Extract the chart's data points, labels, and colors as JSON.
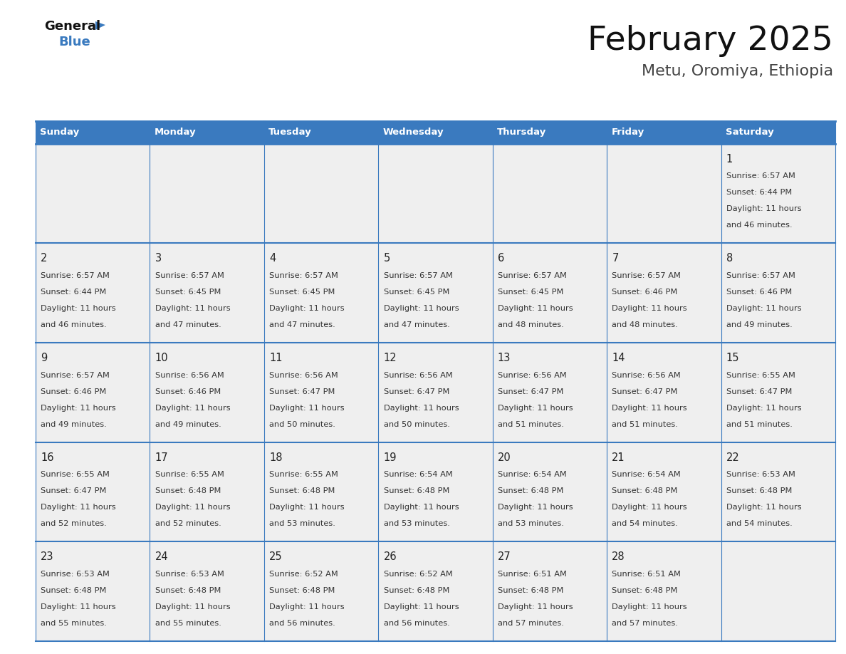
{
  "title": "February 2025",
  "subtitle": "Metu, Oromiya, Ethiopia",
  "header_bg": "#3a7abf",
  "header_text": "#ffffff",
  "cell_bg": "#efefef",
  "border_color": "#3a7abf",
  "day_names": [
    "Sunday",
    "Monday",
    "Tuesday",
    "Wednesday",
    "Thursday",
    "Friday",
    "Saturday"
  ],
  "days": [
    {
      "day": 1,
      "col": 6,
      "row": 0,
      "sunrise": "6:57 AM",
      "sunset": "6:44 PM",
      "daylight": "11 hours and 46 minutes"
    },
    {
      "day": 2,
      "col": 0,
      "row": 1,
      "sunrise": "6:57 AM",
      "sunset": "6:44 PM",
      "daylight": "11 hours and 46 minutes"
    },
    {
      "day": 3,
      "col": 1,
      "row": 1,
      "sunrise": "6:57 AM",
      "sunset": "6:45 PM",
      "daylight": "11 hours and 47 minutes"
    },
    {
      "day": 4,
      "col": 2,
      "row": 1,
      "sunrise": "6:57 AM",
      "sunset": "6:45 PM",
      "daylight": "11 hours and 47 minutes"
    },
    {
      "day": 5,
      "col": 3,
      "row": 1,
      "sunrise": "6:57 AM",
      "sunset": "6:45 PM",
      "daylight": "11 hours and 47 minutes"
    },
    {
      "day": 6,
      "col": 4,
      "row": 1,
      "sunrise": "6:57 AM",
      "sunset": "6:45 PM",
      "daylight": "11 hours and 48 minutes"
    },
    {
      "day": 7,
      "col": 5,
      "row": 1,
      "sunrise": "6:57 AM",
      "sunset": "6:46 PM",
      "daylight": "11 hours and 48 minutes"
    },
    {
      "day": 8,
      "col": 6,
      "row": 1,
      "sunrise": "6:57 AM",
      "sunset": "6:46 PM",
      "daylight": "11 hours and 49 minutes"
    },
    {
      "day": 9,
      "col": 0,
      "row": 2,
      "sunrise": "6:57 AM",
      "sunset": "6:46 PM",
      "daylight": "11 hours and 49 minutes"
    },
    {
      "day": 10,
      "col": 1,
      "row": 2,
      "sunrise": "6:56 AM",
      "sunset": "6:46 PM",
      "daylight": "11 hours and 49 minutes"
    },
    {
      "day": 11,
      "col": 2,
      "row": 2,
      "sunrise": "6:56 AM",
      "sunset": "6:47 PM",
      "daylight": "11 hours and 50 minutes"
    },
    {
      "day": 12,
      "col": 3,
      "row": 2,
      "sunrise": "6:56 AM",
      "sunset": "6:47 PM",
      "daylight": "11 hours and 50 minutes"
    },
    {
      "day": 13,
      "col": 4,
      "row": 2,
      "sunrise": "6:56 AM",
      "sunset": "6:47 PM",
      "daylight": "11 hours and 51 minutes"
    },
    {
      "day": 14,
      "col": 5,
      "row": 2,
      "sunrise": "6:56 AM",
      "sunset": "6:47 PM",
      "daylight": "11 hours and 51 minutes"
    },
    {
      "day": 15,
      "col": 6,
      "row": 2,
      "sunrise": "6:55 AM",
      "sunset": "6:47 PM",
      "daylight": "11 hours and 51 minutes"
    },
    {
      "day": 16,
      "col": 0,
      "row": 3,
      "sunrise": "6:55 AM",
      "sunset": "6:47 PM",
      "daylight": "11 hours and 52 minutes"
    },
    {
      "day": 17,
      "col": 1,
      "row": 3,
      "sunrise": "6:55 AM",
      "sunset": "6:48 PM",
      "daylight": "11 hours and 52 minutes"
    },
    {
      "day": 18,
      "col": 2,
      "row": 3,
      "sunrise": "6:55 AM",
      "sunset": "6:48 PM",
      "daylight": "11 hours and 53 minutes"
    },
    {
      "day": 19,
      "col": 3,
      "row": 3,
      "sunrise": "6:54 AM",
      "sunset": "6:48 PM",
      "daylight": "11 hours and 53 minutes"
    },
    {
      "day": 20,
      "col": 4,
      "row": 3,
      "sunrise": "6:54 AM",
      "sunset": "6:48 PM",
      "daylight": "11 hours and 53 minutes"
    },
    {
      "day": 21,
      "col": 5,
      "row": 3,
      "sunrise": "6:54 AM",
      "sunset": "6:48 PM",
      "daylight": "11 hours and 54 minutes"
    },
    {
      "day": 22,
      "col": 6,
      "row": 3,
      "sunrise": "6:53 AM",
      "sunset": "6:48 PM",
      "daylight": "11 hours and 54 minutes"
    },
    {
      "day": 23,
      "col": 0,
      "row": 4,
      "sunrise": "6:53 AM",
      "sunset": "6:48 PM",
      "daylight": "11 hours and 55 minutes"
    },
    {
      "day": 24,
      "col": 1,
      "row": 4,
      "sunrise": "6:53 AM",
      "sunset": "6:48 PM",
      "daylight": "11 hours and 55 minutes"
    },
    {
      "day": 25,
      "col": 2,
      "row": 4,
      "sunrise": "6:52 AM",
      "sunset": "6:48 PM",
      "daylight": "11 hours and 56 minutes"
    },
    {
      "day": 26,
      "col": 3,
      "row": 4,
      "sunrise": "6:52 AM",
      "sunset": "6:48 PM",
      "daylight": "11 hours and 56 minutes"
    },
    {
      "day": 27,
      "col": 4,
      "row": 4,
      "sunrise": "6:51 AM",
      "sunset": "6:48 PM",
      "daylight": "11 hours and 57 minutes"
    },
    {
      "day": 28,
      "col": 5,
      "row": 4,
      "sunrise": "6:51 AM",
      "sunset": "6:48 PM",
      "daylight": "11 hours and 57 minutes"
    }
  ],
  "num_rows": 5,
  "num_cols": 7,
  "fig_width": 11.88,
  "fig_height": 9.18,
  "logo_general_color": "#111111",
  "logo_blue_color": "#3a7abf",
  "logo_triangle_color": "#3a7abf",
  "title_color": "#111111",
  "subtitle_color": "#444444",
  "day_num_color": "#222222",
  "cell_text_color": "#333333"
}
